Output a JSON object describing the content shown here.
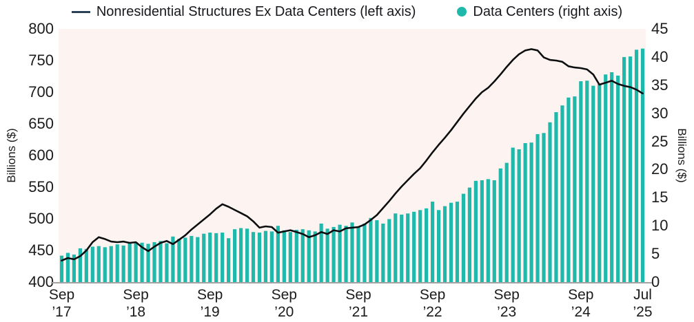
{
  "legend": [
    {
      "label": "Nonresidential Structures Ex Data Centers (left axis)",
      "marker": "line",
      "color": "#2a4158"
    },
    {
      "label": "Data Centers (right axis)",
      "marker": "dot",
      "color": "#1fb9ab"
    }
  ],
  "colors": {
    "bar": "#1fb9ab",
    "line": "#0d0e10",
    "plot_background": "#fdf4f1",
    "axis_line": "#a2a2a2",
    "text": "#1b1b1b"
  },
  "chart_data": {
    "type": "bar",
    "subtype": "line-and-bar-dual-axis",
    "grid": false,
    "legend_position": "top-center",
    "x": [
      "2017-09",
      "2017-10",
      "2017-11",
      "2017-12",
      "2018-01",
      "2018-02",
      "2018-03",
      "2018-04",
      "2018-05",
      "2018-06",
      "2018-07",
      "2018-08",
      "2018-09",
      "2018-10",
      "2018-11",
      "2018-12",
      "2019-01",
      "2019-02",
      "2019-03",
      "2019-04",
      "2019-05",
      "2019-06",
      "2019-07",
      "2019-08",
      "2019-09",
      "2019-10",
      "2019-11",
      "2019-12",
      "2020-01",
      "2020-02",
      "2020-03",
      "2020-04",
      "2020-05",
      "2020-06",
      "2020-07",
      "2020-08",
      "2020-09",
      "2020-10",
      "2020-11",
      "2020-12",
      "2021-01",
      "2021-02",
      "2021-03",
      "2021-04",
      "2021-05",
      "2021-06",
      "2021-07",
      "2021-08",
      "2021-09",
      "2021-10",
      "2021-11",
      "2021-12",
      "2022-01",
      "2022-02",
      "2022-03",
      "2022-04",
      "2022-05",
      "2022-06",
      "2022-07",
      "2022-08",
      "2022-09",
      "2022-10",
      "2022-11",
      "2022-12",
      "2023-01",
      "2023-02",
      "2023-03",
      "2023-04",
      "2023-05",
      "2023-06",
      "2023-07",
      "2023-08",
      "2023-09",
      "2023-10",
      "2023-11",
      "2023-12",
      "2024-01",
      "2024-02",
      "2024-03",
      "2024-04",
      "2024-05",
      "2024-06",
      "2024-07",
      "2024-08",
      "2024-09",
      "2024-10",
      "2024-11",
      "2024-12",
      "2025-01",
      "2025-02",
      "2025-03",
      "2025-04",
      "2025-05",
      "2025-06",
      "2025-07"
    ],
    "series": [
      {
        "name": "Nonresidential Structures Ex Data Centers",
        "type": "line",
        "axis": "left",
        "color": "#0d0e10",
        "values": [
          434,
          438,
          436,
          441,
          450,
          463,
          471,
          468,
          464,
          463,
          464,
          462,
          463,
          455,
          449,
          456,
          462,
          465,
          460,
          467,
          474,
          483,
          491,
          499,
          507,
          516,
          523,
          519,
          514,
          509,
          504,
          496,
          486,
          488,
          487,
          478,
          480,
          482,
          479,
          476,
          471,
          474,
          479,
          476,
          482,
          480,
          485,
          486,
          487,
          491,
          498,
          506,
          517,
          528,
          540,
          551,
          561,
          571,
          580,
          592,
          605,
          617,
          628,
          640,
          653,
          666,
          678,
          690,
          700,
          707,
          717,
          728,
          740,
          751,
          760,
          766,
          768,
          766,
          755,
          751,
          750,
          748,
          741,
          739,
          738,
          736,
          728,
          712,
          715,
          718,
          713,
          710,
          708,
          704,
          698
        ]
      },
      {
        "name": "Data Centers",
        "type": "bar",
        "axis": "right",
        "color": "#1fb9ab",
        "values": [
          4.7,
          5.2,
          4.9,
          6.0,
          5.9,
          6.3,
          6.4,
          6.2,
          6.4,
          6.7,
          6.5,
          6.9,
          7.1,
          7.0,
          6.8,
          7.1,
          7.3,
          6.9,
          8.1,
          7.7,
          7.9,
          8.2,
          8.0,
          8.6,
          8.8,
          8.7,
          8.8,
          7.8,
          9.4,
          9.6,
          9.5,
          8.9,
          8.8,
          9.1,
          9.0,
          10.0,
          9.2,
          8.9,
          9.3,
          9.4,
          9.2,
          9.0,
          10.4,
          9.5,
          9.8,
          10.2,
          10.0,
          10.6,
          9.8,
          10.4,
          11.4,
          11.0,
          10.4,
          11.2,
          12.2,
          12.0,
          12.2,
          12.5,
          12.8,
          13.1,
          14.3,
          12.8,
          13.5,
          14.1,
          14.3,
          15.7,
          16.8,
          18.0,
          18.1,
          18.3,
          18.1,
          20.2,
          21.2,
          23.9,
          23.6,
          24.7,
          24.8,
          26.3,
          26.5,
          28.4,
          30.2,
          31.4,
          32.8,
          33.0,
          35.7,
          35.8,
          34.9,
          35.2,
          36.9,
          37.3,
          36.7,
          40.0,
          40.1,
          41.3,
          41.5
        ]
      }
    ],
    "left_axis": {
      "title": "Billions ($)",
      "min": 400,
      "max": 800,
      "step": 50,
      "ticks": [
        800,
        750,
        700,
        650,
        600,
        550,
        500,
        450,
        400
      ]
    },
    "right_axis": {
      "title": "Billions ($)",
      "min": 0,
      "max": 45,
      "step": 5,
      "ticks": [
        45,
        40,
        35,
        30,
        25,
        20,
        15,
        10,
        5,
        0
      ]
    },
    "x_ticks": [
      {
        "index": 0,
        "line1": "Sep",
        "line2": "’17"
      },
      {
        "index": 12,
        "line1": "Sep",
        "line2": "’18"
      },
      {
        "index": 24,
        "line1": "Sep",
        "line2": "’19"
      },
      {
        "index": 36,
        "line1": "Sep",
        "line2": "’20"
      },
      {
        "index": 48,
        "line1": "Sep",
        "line2": "’21"
      },
      {
        "index": 60,
        "line1": "Sep",
        "line2": "’22"
      },
      {
        "index": 72,
        "line1": "Sep",
        "line2": "’23"
      },
      {
        "index": 84,
        "line1": "Sep",
        "line2": "’24"
      },
      {
        "index": 94,
        "line1": "Jul",
        "line2": "’25"
      }
    ]
  }
}
